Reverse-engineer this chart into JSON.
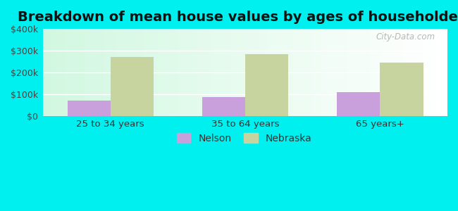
{
  "title": "Breakdown of mean house values by ages of householders",
  "categories": [
    "25 to 34 years",
    "35 to 64 years",
    "65 years+"
  ],
  "nelson_values": [
    72000,
    88000,
    108000
  ],
  "nebraska_values": [
    270000,
    285000,
    245000
  ],
  "nelson_color": "#c9a0dc",
  "nebraska_color": "#c8d4a0",
  "ylim": [
    0,
    400000
  ],
  "yticks": [
    0,
    100000,
    200000,
    300000,
    400000
  ],
  "ytick_labels": [
    "$0",
    "$100k",
    "$200k",
    "$300k",
    "$400k"
  ],
  "bar_width": 0.32,
  "background_color": "#00f0f0",
  "title_fontsize": 14,
  "legend_labels": [
    "Nelson",
    "Nebraska"
  ],
  "watermark": "City-Data.com"
}
